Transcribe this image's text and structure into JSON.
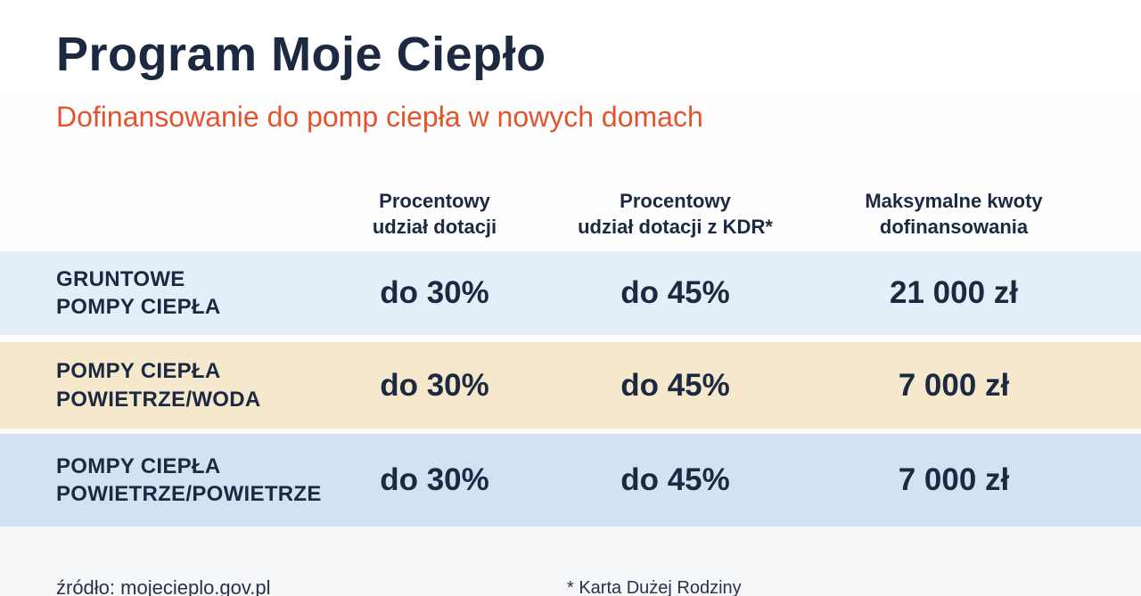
{
  "page": {
    "title": "Program Moje Ciepło",
    "subtitle": "Dofinansowanie do pomp ciepła w nowych domach"
  },
  "colors": {
    "navy": "#1c2940",
    "orange": "#e5532c",
    "row_light_blue": "#e4eef8",
    "row_beige": "#f5e8cd",
    "row_blue": "#d3e2f3"
  },
  "table": {
    "columns": [
      {
        "line1": "Procentowy",
        "line2": "udział dotacji"
      },
      {
        "line1": "Procentowy",
        "line2": "udział dotacji z KDR*"
      },
      {
        "line1": "Maksymalne kwoty",
        "line2": "dofinansowania"
      }
    ],
    "rows": [
      {
        "label_line1": "GRUNTOWE",
        "label_line2": "POMPY CIEPŁA",
        "grant": "do 30%",
        "grant_kdr": "do 45%",
        "max_amount": "21 000 zł",
        "bg": "#e4eef8"
      },
      {
        "label_line1": "POMPY CIEPŁA",
        "label_line2": "POWIETRZE/WODA",
        "grant": "do 30%",
        "grant_kdr": "do 45%",
        "max_amount": "7 000 zł",
        "bg": "#f5e8cd"
      },
      {
        "label_line1": "POMPY CIEPŁA",
        "label_line2": "POWIETRZE/POWIETRZE",
        "grant": "do 30%",
        "grant_kdr": "do 45%",
        "max_amount": "7 000 zł",
        "bg": "#d3e2f3"
      }
    ]
  },
  "footer": {
    "source": "źródło: mojecieplo.gov.pl",
    "footnote": "* Karta Dużej Rodziny"
  },
  "chart_data": {
    "type": "table",
    "title": "Program Moje Ciepło",
    "subtitle": "Dofinansowanie do pomp ciepła w nowych domach",
    "columns": [
      "",
      "Procentowy udział dotacji",
      "Procentowy udział dotacji z KDR*",
      "Maksymalne kwoty dofinansowania"
    ],
    "rows": [
      [
        "GRUNTOWE POMPY CIEPŁA",
        "do 30%",
        "do 45%",
        "21 000 zł"
      ],
      [
        "POMPY CIEPŁA POWIETRZE/WODA",
        "do 30%",
        "do 45%",
        "7 000 zł"
      ],
      [
        "POMPY CIEPŁA POWIETRZE/POWIETRZE",
        "do 30%",
        "do 45%",
        "7 000 zł"
      ]
    ],
    "footnote": "* Karta Dużej Rodziny",
    "source": "źródło: mojecieplo.gov.pl"
  }
}
